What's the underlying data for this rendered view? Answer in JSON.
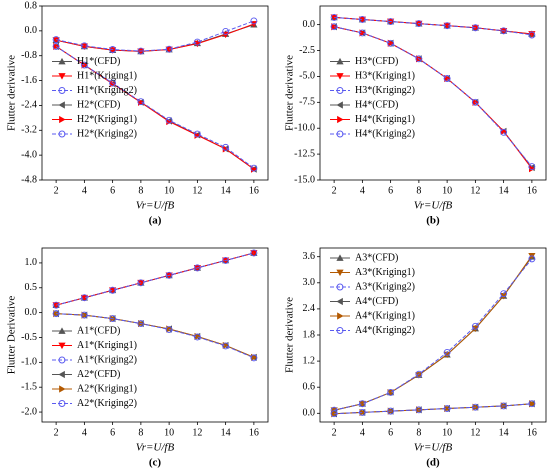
{
  "chart_data": [
    {
      "type": "line",
      "xlabel": "Vr=U/fB",
      "ylabel": "Flutter derivative",
      "caption": "(a)",
      "legend": "center left",
      "x": [
        2,
        4,
        6,
        8,
        10,
        12,
        14,
        16
      ],
      "xlim": [
        1,
        17
      ],
      "xticks": [
        2,
        4,
        6,
        8,
        10,
        12,
        14,
        16
      ],
      "ylim": [
        -4.8,
        0.8
      ],
      "yticks": [
        -4.8,
        {
          "value": -4,
          "label": "-4.0"
        },
        -3.2,
        -2.4,
        -1.6,
        -0.8,
        {
          "value": 0,
          "label": "0.0"
        },
        0.8
      ],
      "series": [
        {
          "name": "H1*(CFD)",
          "color": "#555555",
          "marker": "triangle-up",
          "dash": false,
          "values": [
            -0.3,
            -0.5,
            -0.62,
            -0.66,
            -0.6,
            -0.4,
            -0.1,
            0.2
          ]
        },
        {
          "name": "H1*(Kriging1)",
          "color": "#ff0000",
          "marker": "triangle-down",
          "dash": false,
          "values": [
            -0.3,
            -0.5,
            -0.62,
            -0.66,
            -0.6,
            -0.41,
            -0.12,
            0.22
          ]
        },
        {
          "name": "H1*(Kriging2)",
          "color": "#5b5bf0",
          "marker": "circle",
          "dash": true,
          "values": [
            -0.28,
            -0.48,
            -0.6,
            -0.65,
            -0.59,
            -0.36,
            -0.02,
            0.32
          ]
        },
        {
          "name": "H2*(CFD)",
          "color": "#555555",
          "marker": "triangle-left",
          "dash": false,
          "values": [
            -0.5,
            -1.1,
            -1.7,
            -2.3,
            -2.9,
            -3.35,
            -3.8,
            -4.45
          ]
        },
        {
          "name": "H2*(Kriging1)",
          "color": "#ff0000",
          "marker": "triangle-right",
          "dash": false,
          "values": [
            -0.5,
            -1.1,
            -1.7,
            -2.3,
            -2.92,
            -3.36,
            -3.8,
            -4.45
          ]
        },
        {
          "name": "H2*(Kriging2)",
          "color": "#5b5bf0",
          "marker": "circle",
          "dash": true,
          "values": [
            -0.5,
            -1.1,
            -1.68,
            -2.28,
            -2.88,
            -3.32,
            -3.75,
            -4.42
          ]
        }
      ]
    },
    {
      "type": "line",
      "xlabel": "Vr=U/fB",
      "ylabel": "Flutter derivative",
      "caption": "(b)",
      "legend": "center left",
      "x": [
        2,
        4,
        6,
        8,
        10,
        12,
        14,
        16
      ],
      "xlim": [
        1,
        17
      ],
      "xticks": [
        2,
        4,
        6,
        8,
        10,
        12,
        14,
        16
      ],
      "ylim": [
        -15,
        1.8
      ],
      "yticks": [
        {
          "value": -15,
          "label": "-15.0"
        },
        -12.5,
        {
          "value": -10,
          "label": "-10.0"
        },
        -7.5,
        {
          "value": -5,
          "label": "-5.0"
        },
        -2.5,
        {
          "value": 0,
          "label": "0.0"
        }
      ],
      "series": [
        {
          "name": "H3*(CFD)",
          "color": "#555555",
          "marker": "triangle-up",
          "dash": false,
          "values": [
            0.7,
            0.5,
            0.3,
            0.1,
            -0.1,
            -0.3,
            -0.6,
            -0.9
          ]
        },
        {
          "name": "H3*(Kriging1)",
          "color": "#ff0000",
          "marker": "triangle-down",
          "dash": false,
          "values": [
            0.7,
            0.5,
            0.3,
            0.1,
            -0.1,
            -0.3,
            -0.6,
            -0.9
          ]
        },
        {
          "name": "H3*(Kriging2)",
          "color": "#5b5bf0",
          "marker": "circle",
          "dash": true,
          "values": [
            0.7,
            0.5,
            0.3,
            0.1,
            -0.1,
            -0.3,
            -0.6,
            -1
          ]
        },
        {
          "name": "H4*(CFD)",
          "color": "#555555",
          "marker": "triangle-left",
          "dash": false,
          "values": [
            -0.2,
            -0.8,
            -1.8,
            -3.3,
            -5.2,
            -7.5,
            -10.3,
            -13.8
          ]
        },
        {
          "name": "H4*(Kriging1)",
          "color": "#ff0000",
          "marker": "triangle-right",
          "dash": false,
          "values": [
            -0.2,
            -0.8,
            -1.8,
            -3.3,
            -5.2,
            -7.5,
            -10.3,
            -13.9
          ]
        },
        {
          "name": "H4*(Kriging2)",
          "color": "#5b5bf0",
          "marker": "circle",
          "dash": true,
          "values": [
            -0.2,
            -0.8,
            -1.8,
            -3.3,
            -5.2,
            -7.5,
            -10.4,
            -13.7
          ]
        }
      ]
    },
    {
      "type": "line",
      "xlabel": "Vr=U/fB",
      "ylabel": "Flutter Derivative",
      "caption": "(c)",
      "legend": "lower left",
      "x": [
        2,
        4,
        6,
        8,
        10,
        12,
        14,
        16
      ],
      "xlim": [
        1,
        17
      ],
      "xticks": [
        2,
        4,
        6,
        8,
        10,
        12,
        14,
        16
      ],
      "ylim": [
        -2.2,
        1.3
      ],
      "yticks": [
        {
          "value": -2,
          "label": "-2.0"
        },
        -1.5,
        {
          "value": -1,
          "label": "-1.0"
        },
        -0.5,
        {
          "value": 0,
          "label": "0.0"
        },
        0.5,
        {
          "value": 1,
          "label": "1.0"
        }
      ],
      "series": [
        {
          "name": "A1*(CFD)",
          "color": "#555555",
          "marker": "triangle-up",
          "dash": false,
          "values": [
            0.15,
            0.3,
            0.45,
            0.6,
            0.75,
            0.9,
            1.05,
            1.2
          ]
        },
        {
          "name": "A1*(Kriging1)",
          "color": "#ff0000",
          "marker": "triangle-down",
          "dash": false,
          "values": [
            0.15,
            0.3,
            0.45,
            0.6,
            0.75,
            0.9,
            1.05,
            1.2
          ]
        },
        {
          "name": "A1*(Kriging2)",
          "color": "#5b5bf0",
          "marker": "circle",
          "dash": true,
          "values": [
            0.15,
            0.3,
            0.45,
            0.6,
            0.75,
            0.9,
            1.05,
            1.2
          ]
        },
        {
          "name": "A2*(CFD)",
          "color": "#555555",
          "marker": "triangle-left",
          "dash": false,
          "values": [
            -0.02,
            -0.05,
            -0.12,
            -0.22,
            -0.33,
            -0.48,
            -0.66,
            -0.9
          ]
        },
        {
          "name": "A2*(Kriging1)",
          "color": "#b35900",
          "marker": "triangle-right",
          "dash": false,
          "values": [
            -0.02,
            -0.05,
            -0.12,
            -0.22,
            -0.33,
            -0.48,
            -0.66,
            -0.9
          ]
        },
        {
          "name": "A2*(Kriging2)",
          "color": "#5b5bf0",
          "marker": "circle",
          "dash": true,
          "values": [
            -0.02,
            -0.05,
            -0.12,
            -0.22,
            -0.34,
            -0.49,
            -0.67,
            -0.91
          ]
        }
      ]
    },
    {
      "type": "line",
      "xlabel": "Vr=U/fB",
      "ylabel": "Flutter derivative",
      "caption": "(d)",
      "legend": "upper left",
      "x": [
        2,
        4,
        6,
        8,
        10,
        12,
        14,
        16
      ],
      "xlim": [
        1,
        17
      ],
      "xticks": [
        2,
        4,
        6,
        8,
        10,
        12,
        14,
        16
      ],
      "ylim": [
        -0.2,
        3.8
      ],
      "yticks": [
        {
          "value": 0,
          "label": "0.0"
        },
        0.6,
        1.2,
        1.8,
        2.4,
        {
          "value": 3,
          "label": "3.0"
        },
        3.6
      ],
      "series": [
        {
          "name": "A3*(CFD)",
          "color": "#555555",
          "marker": "triangle-up",
          "dash": false,
          "values": [
            0.07,
            0.22,
            0.48,
            0.88,
            1.35,
            1.95,
            2.7,
            3.6
          ]
        },
        {
          "name": "A3*(Kriging1)",
          "color": "#b35900",
          "marker": "triangle-down",
          "dash": false,
          "values": [
            0.07,
            0.22,
            0.48,
            0.88,
            1.35,
            1.95,
            2.7,
            3.62
          ]
        },
        {
          "name": "A3*(Kriging2)",
          "color": "#5b5bf0",
          "marker": "circle",
          "dash": true,
          "values": [
            0.07,
            0.22,
            0.48,
            0.9,
            1.4,
            2,
            2.75,
            3.55
          ]
        },
        {
          "name": "A4*(CFD)",
          "color": "#555555",
          "marker": "triangle-left",
          "dash": false,
          "values": [
            -0.01,
            0.02,
            0.05,
            0.08,
            0.11,
            0.14,
            0.17,
            0.22
          ]
        },
        {
          "name": "A4*(Kriging1)",
          "color": "#b35900",
          "marker": "triangle-right",
          "dash": false,
          "values": [
            -0.01,
            0.02,
            0.05,
            0.08,
            0.11,
            0.14,
            0.17,
            0.22
          ]
        },
        {
          "name": "A4*(Kriging2)",
          "color": "#5b5bf0",
          "marker": "circle",
          "dash": true,
          "values": [
            -0.01,
            0.02,
            0.05,
            0.08,
            0.11,
            0.14,
            0.17,
            0.22
          ]
        }
      ]
    }
  ]
}
